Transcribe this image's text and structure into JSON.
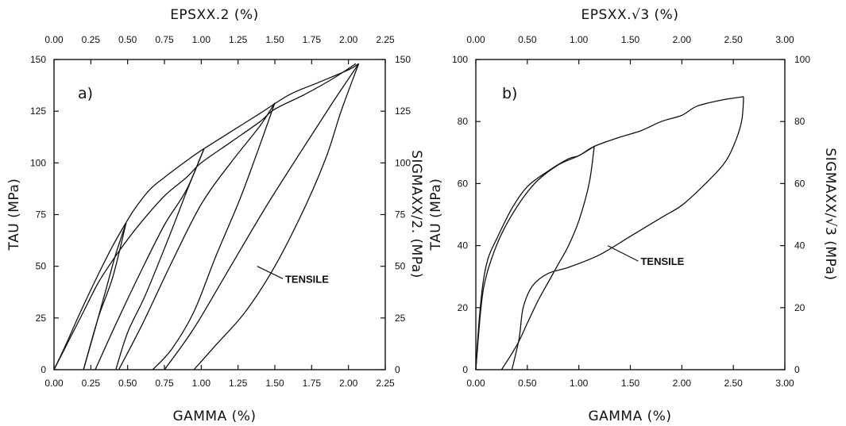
{
  "chart_data": [
    {
      "type": "line",
      "panel_label": "a)",
      "title": "",
      "xlabel": "GAMMA (%)",
      "x2label": "EPSXX.2 (%)",
      "ylabel": "TAU (MPa)",
      "y2label": "SIGMAXX/2. (MPa)",
      "xlim": [
        0,
        2.25
      ],
      "ylim": [
        0,
        150
      ],
      "x_ticks": [
        "0.00",
        "0.25",
        "0.50",
        "0.75",
        "1.00",
        "1.25",
        "1.50",
        "1.75",
        "2.00",
        "2.25"
      ],
      "x2_ticks": [
        "0.00",
        "0.25",
        "0.50",
        "0.75",
        "1.00",
        "1.25",
        "1.50",
        "1.75",
        "2.00",
        "2.25"
      ],
      "y_ticks": [
        "0",
        "25",
        "50",
        "75",
        "100",
        "125",
        "150"
      ],
      "y2_ticks": [
        "0",
        "25",
        "50",
        "75",
        "100",
        "125",
        "150"
      ],
      "annotation": {
        "text": "TENSILE",
        "x": 1.57,
        "y": 44,
        "arrow_to_x": 1.38,
        "arrow_to_y": 50
      },
      "series": [
        {
          "points": [
            [
              0,
              0
            ],
            [
              0.08,
              12
            ],
            [
              0.18,
              28
            ],
            [
              0.3,
              46
            ],
            [
              0.4,
              60
            ],
            [
              0.48,
              70
            ],
            [
              0.55,
              78
            ],
            [
              0.65,
              87
            ],
            [
              0.75,
              93
            ],
            [
              0.9,
              101
            ],
            [
              1.0,
              106
            ],
            [
              1.2,
              115
            ],
            [
              1.4,
              124
            ],
            [
              1.6,
              133
            ],
            [
              1.8,
              139
            ],
            [
              2.0,
              145
            ],
            [
              2.07,
              148
            ]
          ]
        },
        {
          "points": [
            [
              0,
              0
            ],
            [
              0.1,
              14
            ],
            [
              0.2,
              28
            ],
            [
              0.3,
              42
            ],
            [
              0.4,
              53
            ],
            [
              0.5,
              63
            ],
            [
              0.6,
              72
            ],
            [
              0.75,
              84
            ],
            [
              0.9,
              93
            ],
            [
              1.0,
              100
            ],
            [
              1.2,
              110
            ],
            [
              1.4,
              120
            ],
            [
              1.5,
              126
            ],
            [
              1.7,
              133
            ],
            [
              1.9,
              141
            ],
            [
              2.05,
              148
            ]
          ]
        },
        {
          "points": [
            [
              0.49,
              71
            ],
            [
              0.42,
              56
            ],
            [
              0.35,
              38
            ],
            [
              0.28,
              20
            ],
            [
              0.2,
              0
            ]
          ]
        },
        {
          "points": [
            [
              0.2,
              0
            ],
            [
              0.3,
              25
            ],
            [
              0.4,
              45
            ],
            [
              0.49,
              71
            ]
          ]
        },
        {
          "points": [
            [
              1.02,
              107
            ],
            [
              0.9,
              86
            ],
            [
              0.78,
              64
            ],
            [
              0.62,
              36
            ],
            [
              0.5,
              18
            ],
            [
              0.42,
              0
            ]
          ]
        },
        {
          "points": [
            [
              0.28,
              0
            ],
            [
              0.42,
              22
            ],
            [
              0.58,
              46
            ],
            [
              0.75,
              70
            ],
            [
              0.9,
              87
            ],
            [
              1.02,
              107
            ]
          ]
        },
        {
          "points": [
            [
              1.5,
              129
            ],
            [
              1.38,
              105
            ],
            [
              1.26,
              82
            ],
            [
              1.1,
              55
            ],
            [
              0.95,
              28
            ],
            [
              0.8,
              10
            ],
            [
              0.67,
              0
            ]
          ]
        },
        {
          "points": [
            [
              0.44,
              0
            ],
            [
              0.6,
              22
            ],
            [
              0.8,
              52
            ],
            [
              1.0,
              80
            ],
            [
              1.2,
              100
            ],
            [
              1.4,
              118
            ],
            [
              1.5,
              129
            ]
          ]
        },
        {
          "points": [
            [
              2.07,
              148
            ],
            [
              1.95,
              125
            ],
            [
              1.85,
              103
            ],
            [
              1.7,
              78
            ],
            [
              1.5,
              50
            ],
            [
              1.3,
              28
            ],
            [
              1.1,
              12
            ],
            [
              0.95,
              0
            ]
          ]
        },
        {
          "points": [
            [
              0.75,
              0
            ],
            [
              0.95,
              20
            ],
            [
              1.2,
              50
            ],
            [
              1.45,
              80
            ],
            [
              1.7,
              108
            ],
            [
              1.9,
              130
            ],
            [
              2.07,
              148
            ]
          ]
        }
      ]
    },
    {
      "type": "line",
      "panel_label": "b)",
      "title": "",
      "xlabel": "GAMMA (%)",
      "x2label": "EPSXX.√3 (%)",
      "ylabel": "TAU (MPa)",
      "y2label": "SIGMAXX/√3 (MPa)",
      "xlim": [
        0,
        3.0
      ],
      "ylim": [
        0,
        100
      ],
      "x_ticks": [
        "0.00",
        "0.50",
        "1.00",
        "1.50",
        "2.00",
        "2.50",
        "3.00"
      ],
      "x2_ticks": [
        "0.00",
        "0.50",
        "1.00",
        "1.50",
        "2.00",
        "2.50",
        "3.00"
      ],
      "y_ticks": [
        "0",
        "20",
        "40",
        "60",
        "80",
        "100"
      ],
      "y2_ticks": [
        "0",
        "20",
        "40",
        "60",
        "80",
        "100"
      ],
      "annotation": {
        "text": "TENSILE",
        "x": 1.6,
        "y": 35,
        "arrow_to_x": 1.28,
        "arrow_to_y": 40
      },
      "series": [
        {
          "points": [
            [
              0,
              0
            ],
            [
              0.03,
              15
            ],
            [
              0.07,
              28
            ],
            [
              0.12,
              36
            ],
            [
              0.2,
              42
            ],
            [
              0.35,
              52
            ],
            [
              0.5,
              59
            ],
            [
              0.7,
              64
            ],
            [
              0.9,
              68
            ],
            [
              1.0,
              69
            ],
            [
              1.15,
              72
            ]
          ]
        },
        {
          "points": [
            [
              0,
              0
            ],
            [
              0.05,
              20
            ],
            [
              0.1,
              30
            ],
            [
              0.2,
              40
            ],
            [
              0.3,
              47
            ],
            [
              0.45,
              55
            ],
            [
              0.6,
              61
            ],
            [
              0.8,
              66
            ],
            [
              1.0,
              69
            ],
            [
              1.15,
              72
            ],
            [
              1.4,
              75
            ],
            [
              1.6,
              77
            ],
            [
              1.8,
              80
            ],
            [
              2.0,
              82
            ],
            [
              2.15,
              85
            ],
            [
              2.4,
              87
            ],
            [
              2.6,
              88
            ]
          ]
        },
        {
          "points": [
            [
              1.15,
              72
            ],
            [
              1.1,
              60
            ],
            [
              1.0,
              48
            ],
            [
              0.9,
              40
            ],
            [
              0.8,
              34
            ],
            [
              0.7,
              28
            ],
            [
              0.6,
              22
            ],
            [
              0.5,
              15
            ],
            [
              0.4,
              8
            ],
            [
              0.25,
              0
            ]
          ]
        },
        {
          "points": [
            [
              0.35,
              0
            ],
            [
              0.42,
              10
            ],
            [
              0.46,
              20
            ],
            [
              0.55,
              27
            ],
            [
              0.7,
              31
            ],
            [
              0.9,
              33
            ],
            [
              1.2,
              37
            ],
            [
              1.5,
              43
            ],
            [
              1.8,
              49
            ],
            [
              2.0,
              53
            ],
            [
              2.2,
              59
            ],
            [
              2.4,
              66
            ],
            [
              2.5,
              72
            ],
            [
              2.58,
              80
            ],
            [
              2.6,
              88
            ]
          ]
        }
      ]
    }
  ]
}
